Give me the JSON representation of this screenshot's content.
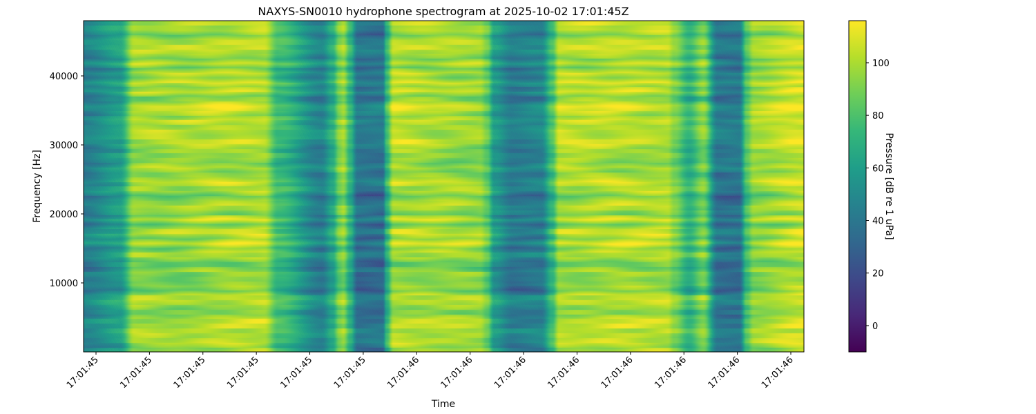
{
  "chart_data": {
    "type": "heatmap",
    "title": "NAXYS-SN0010 hydrophone spectrogram at 2025-10-02 17:01:45Z",
    "xlabel": "Time",
    "ylabel": "Frequency [Hz]",
    "colorbar_label": "Pressure [dB re 1 uPa]",
    "colormap": "viridis",
    "colormap_stops": [
      "#440154",
      "#482878",
      "#3e4989",
      "#31688e",
      "#26828e",
      "#1f9e89",
      "#35b779",
      "#6ece58",
      "#b5de2b",
      "#fde725"
    ],
    "x_tick_labels": [
      "17:01:45",
      "17:01:45",
      "17:01:45",
      "17:01:45",
      "17:01:45",
      "17:01:45",
      "17:01:46",
      "17:01:46",
      "17:01:46",
      "17:01:46",
      "17:01:46",
      "17:01:46",
      "17:01:46",
      "17:01:46"
    ],
    "y_ticks": [
      10000,
      20000,
      30000,
      40000
    ],
    "y_tick_labels": [
      "10000",
      "20000",
      "30000",
      "40000"
    ],
    "ylim": [
      0,
      48000
    ],
    "clim": [
      -10,
      116
    ],
    "colorbar_ticks": [
      0,
      20,
      40,
      60,
      80,
      100
    ],
    "colorbar_tick_labels": [
      "0",
      "20",
      "40",
      "60",
      "80",
      "100"
    ],
    "time_profile_db": [
      [
        0.0,
        45
      ],
      [
        0.05,
        60
      ],
      [
        0.07,
        95
      ],
      [
        0.25,
        100
      ],
      [
        0.27,
        75
      ],
      [
        0.33,
        45
      ],
      [
        0.345,
        65
      ],
      [
        0.355,
        90
      ],
      [
        0.36,
        95
      ],
      [
        0.37,
        70
      ],
      [
        0.38,
        38
      ],
      [
        0.415,
        38
      ],
      [
        0.42,
        70
      ],
      [
        0.43,
        100
      ],
      [
        0.55,
        95
      ],
      [
        0.56,
        85
      ],
      [
        0.57,
        58
      ],
      [
        0.595,
        42
      ],
      [
        0.635,
        45
      ],
      [
        0.65,
        75
      ],
      [
        0.66,
        100
      ],
      [
        0.81,
        100
      ],
      [
        0.82,
        90
      ],
      [
        0.84,
        70
      ],
      [
        0.86,
        90
      ],
      [
        0.88,
        40
      ],
      [
        0.91,
        40
      ],
      [
        0.92,
        80
      ],
      [
        0.93,
        95
      ],
      [
        1.0,
        105
      ]
    ]
  }
}
